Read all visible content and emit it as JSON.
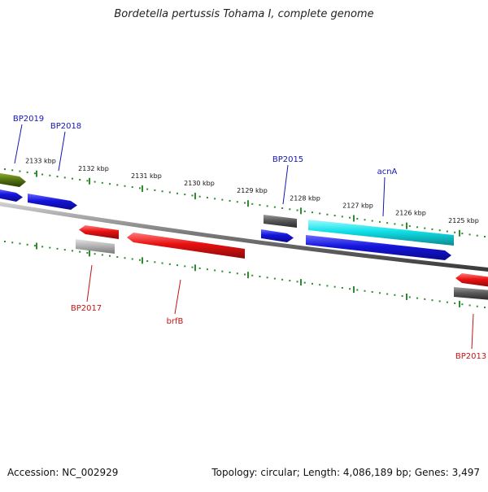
{
  "title": "Bordetella pertussis Tohama I, complete genome",
  "footer": {
    "accession": "Accession: NC_002929",
    "summary": "Topology: circular; Length: 4,086,189 bp; Genes: 3,497"
  },
  "colors": {
    "backbone": "#7a7a7a",
    "ticks": "#2e8b2e",
    "forward_label": "#1515b0",
    "reverse_label": "#c41414",
    "blue": "#1414dc",
    "red": "#e81010",
    "cyan": "#10e0e8",
    "olive": "#5a7a10",
    "dark_gray": "#5a5a5a",
    "light_gray": "#b4b4b4"
  },
  "ticks": [
    "2133 kbp",
    "2132 kbp",
    "2131 kbp",
    "2130 kbp",
    "2129 kbp",
    "2128 kbp",
    "2127 kbp",
    "2126 kbp",
    "2125 kbp"
  ],
  "genes": [
    {
      "label": "BP2019",
      "strand": "forward",
      "color": "olive"
    },
    {
      "label": "BP2018",
      "strand": "forward",
      "color": "blue"
    },
    {
      "label": "BP2015",
      "strand": "forward",
      "color": "dark_gray"
    },
    {
      "label": "acnA",
      "strand": "forward",
      "color": "cyan"
    },
    {
      "label": "BP2017",
      "strand": "reverse",
      "color": "red"
    },
    {
      "label": "brfB",
      "strand": "reverse",
      "color": "red"
    },
    {
      "label": "BP2013",
      "strand": "reverse",
      "color": "red"
    },
    {
      "label": "",
      "strand": "forward",
      "color": "blue"
    },
    {
      "label": "",
      "strand": "forward",
      "color": "blue"
    },
    {
      "label": "",
      "strand": "forward",
      "color": "blue"
    },
    {
      "label": "",
      "strand": "reverse",
      "color": "light_gray"
    },
    {
      "label": "",
      "strand": "reverse",
      "color": "dark_gray"
    }
  ]
}
